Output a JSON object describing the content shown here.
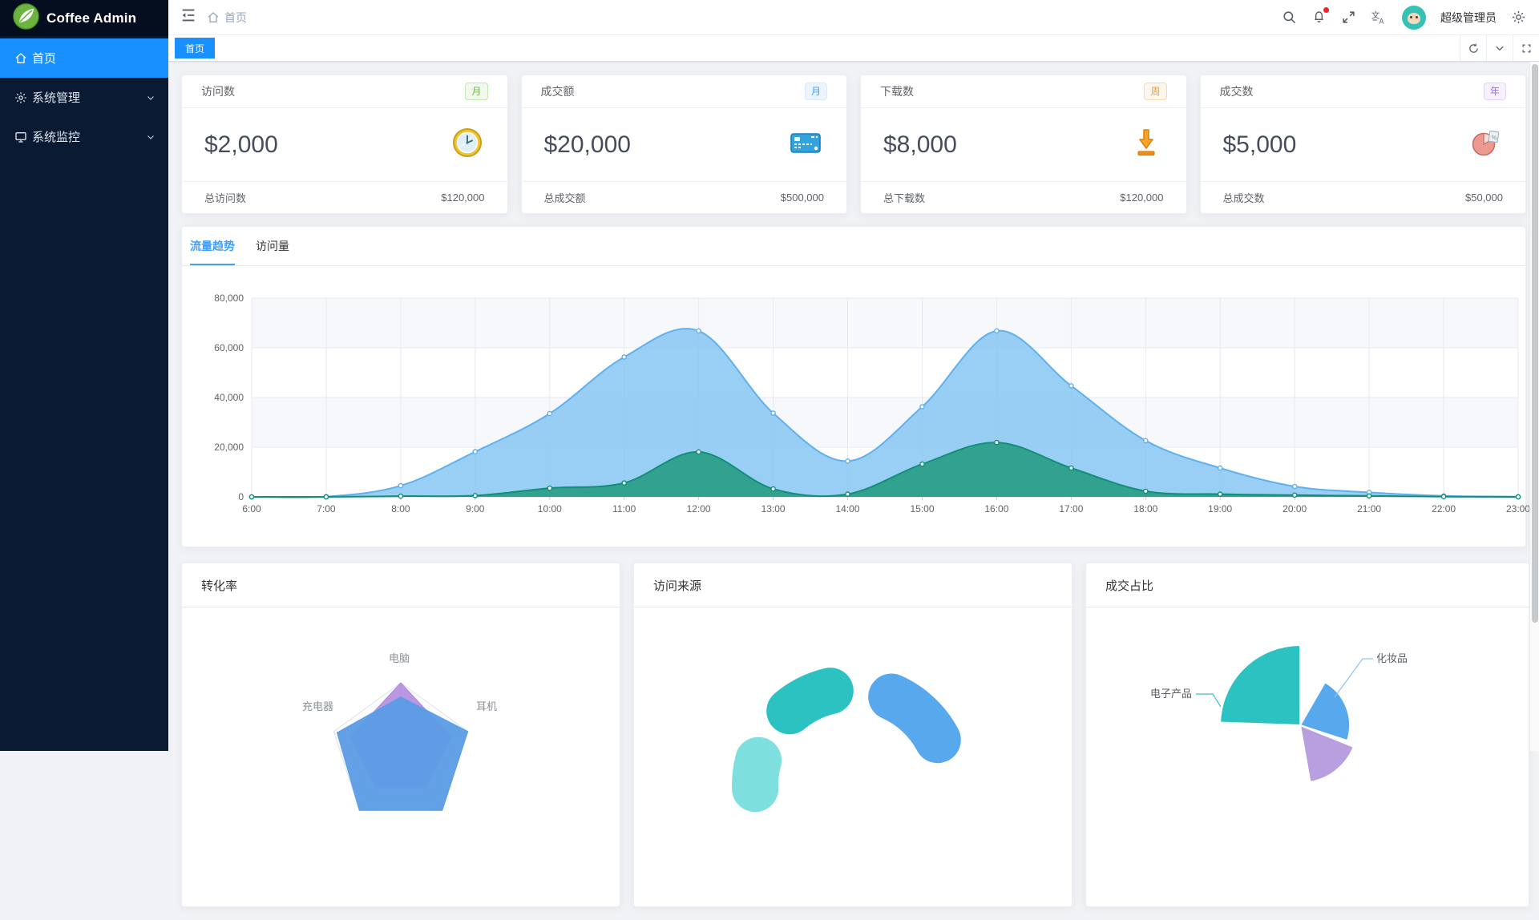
{
  "sidebar": {
    "logo_text": "Coffee Admin",
    "menu": [
      {
        "label": "首页",
        "icon": "home-icon",
        "active": true,
        "expandable": false
      },
      {
        "label": "系统管理",
        "icon": "gear-icon",
        "active": false,
        "expandable": true
      },
      {
        "label": "系统监控",
        "icon": "monitor-icon",
        "active": false,
        "expandable": true
      }
    ]
  },
  "navbar": {
    "breadcrumb": "首页",
    "username": "超级管理员",
    "icons": [
      "menu-fold-icon",
      "home-icon",
      "search-icon",
      "bell-icon",
      "fullscreen-icon",
      "translate-icon",
      "gear-icon"
    ]
  },
  "tabbar": {
    "tabs": [
      {
        "label": "首页",
        "active": true
      }
    ],
    "controls": [
      "refresh-icon",
      "chevron-down-icon",
      "maximize-icon"
    ]
  },
  "stat_cards": [
    {
      "title": "访问数",
      "badge": "月",
      "badge_type": "success",
      "value": "$2,000",
      "icon": "clock-icon",
      "footer_label": "总访问数",
      "footer_value": "$120,000"
    },
    {
      "title": "成交额",
      "badge": "月",
      "badge_type": "primary",
      "value": "$20,000",
      "icon": "bank-card-icon",
      "footer_label": "总成交额",
      "footer_value": "$500,000"
    },
    {
      "title": "下载数",
      "badge": "周",
      "badge_type": "warning",
      "value": "$8,000",
      "icon": "download-icon",
      "footer_label": "总下载数",
      "footer_value": "$120,000"
    },
    {
      "title": "成交数",
      "badge": "年",
      "badge_type": "purple",
      "value": "$5,000",
      "icon": "pie-icon",
      "footer_label": "总成交数",
      "footer_value": "$50,000"
    }
  ],
  "trend_card": {
    "tabs": [
      {
        "label": "流量趋势",
        "active": true
      },
      {
        "label": "访问量",
        "active": false
      }
    ]
  },
  "bottom_cards": [
    {
      "title": "转化率"
    },
    {
      "title": "访问来源"
    },
    {
      "title": "成交占比"
    }
  ],
  "chart_data": [
    {
      "type": "area",
      "title": "流量趋势",
      "x": [
        "6:00",
        "7:00",
        "8:00",
        "9:00",
        "10:00",
        "11:00",
        "12:00",
        "13:00",
        "14:00",
        "15:00",
        "16:00",
        "17:00",
        "18:00",
        "19:00",
        "20:00",
        "21:00",
        "22:00",
        "23:00"
      ],
      "ylim": [
        0,
        80000
      ],
      "yticks": [
        0,
        20000,
        40000,
        60000,
        80000
      ],
      "ytick_labels": [
        "0",
        "20,000",
        "40,000",
        "60,000",
        "80,000"
      ],
      "grid": true,
      "legend_position": "none",
      "series": [
        {
          "name": "blue-area",
          "color": "#5fb0ef",
          "fill": "rgba(135,199,242,0.85)",
          "values": [
            0,
            100,
            4500,
            18200,
            33500,
            56300,
            66800,
            33700,
            14400,
            36300,
            66800,
            44700,
            22600,
            11600,
            4200,
            1800,
            400,
            100
          ]
        },
        {
          "name": "teal-area",
          "color": "#128f78",
          "fill": "rgba(42,157,135,0.92)",
          "values": [
            0,
            0,
            300,
            500,
            3500,
            5600,
            18100,
            3200,
            1100,
            13200,
            21900,
            11600,
            2300,
            1100,
            700,
            400,
            100,
            0
          ]
        }
      ]
    },
    {
      "type": "radar",
      "title": "转化率",
      "indicators": [
        "电脑",
        "耳机",
        "",
        "",
        "充电器"
      ],
      "max": 1,
      "series": [
        {
          "name": "purple-polygon",
          "color": "#b28be0",
          "opacity": 0.9,
          "values": [
            1.0,
            0.75,
            0.6,
            0.6,
            0.75
          ]
        },
        {
          "name": "blue-polygon",
          "color": "#5b9ce6",
          "opacity": 0.95,
          "values": [
            0.8,
            1.0,
            1.0,
            1.0,
            0.95
          ]
        }
      ]
    },
    {
      "type": "donut",
      "title": "访问来源",
      "inner_outer_radius": [
        92,
        150
      ],
      "segments": [
        {
          "name": "blue-segment",
          "color": "#58a8ee",
          "start_deg": 28,
          "end_deg": 66
        },
        {
          "name": "teal-segment",
          "color": "#2cc2c2",
          "start_deg": 103,
          "end_deg": 130
        },
        {
          "name": "cyan-segment",
          "color": "#7de0de",
          "start_deg": 165,
          "end_deg": 182
        }
      ]
    },
    {
      "type": "rose-pie",
      "title": "成交占比",
      "slices": [
        {
          "label": "电子产品",
          "color": "#2cc2c2",
          "start_deg": 90,
          "end_deg": 178,
          "radius": 100
        },
        {
          "label": "化妆品",
          "color": "#58a8ee",
          "start_deg": -18,
          "end_deg": 60,
          "radius": 62
        },
        {
          "label": "",
          "color": "#b79fe0",
          "start_deg": -80,
          "end_deg": -22,
          "radius": 72
        }
      ]
    }
  ]
}
